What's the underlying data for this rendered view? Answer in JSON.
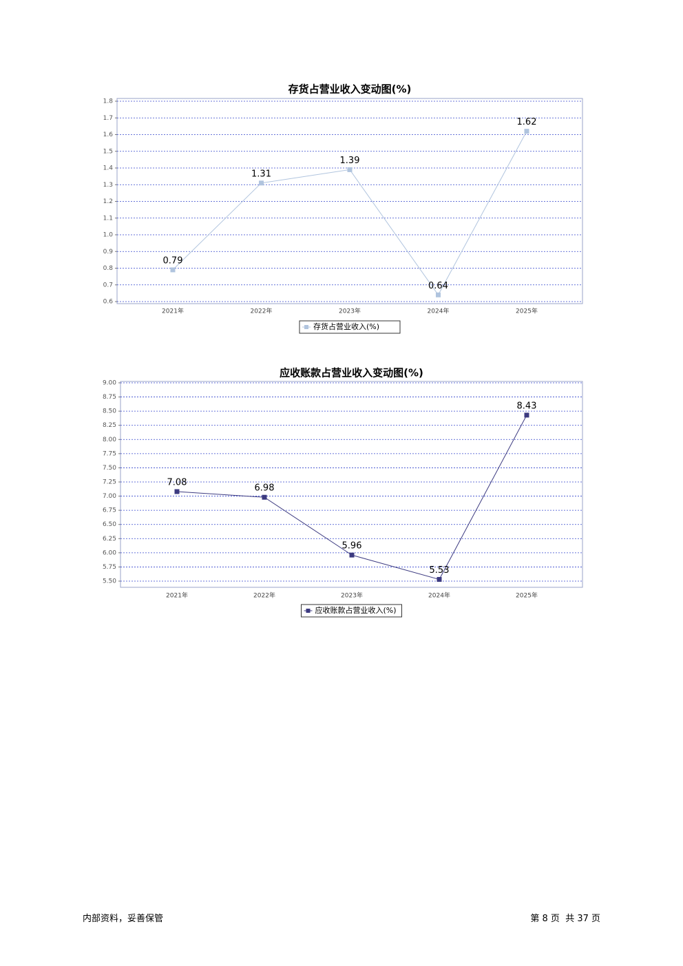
{
  "chart_data": [
    {
      "type": "line",
      "title": "存货占营业收入变动图(%)",
      "categories": [
        "2021年",
        "2022年",
        "2023年",
        "2024年",
        "2025年"
      ],
      "series": [
        {
          "name": "存货占营业收入(%)",
          "color": "#b0c4de",
          "values": [
            0.79,
            1.31,
            1.39,
            0.64,
            1.62
          ]
        }
      ],
      "ylim": [
        0.6,
        1.8
      ],
      "yticks": [
        0.6,
        0.7,
        0.8,
        0.9,
        {
          "value": 1,
          "label": "1.0"
        },
        1.1,
        1.2,
        1.3,
        1.4,
        1.5,
        1.6,
        1.7,
        1.8
      ],
      "grid": true,
      "legend": "bottom"
    },
    {
      "type": "line",
      "title": "应收账款占营业收入变动图(%)",
      "categories": [
        "2021年",
        "2022年",
        "2023年",
        "2024年",
        "2025年"
      ],
      "series": [
        {
          "name": "应收账款占营业收入(%)",
          "color": "#3c3a80",
          "values": [
            7.08,
            6.98,
            5.96,
            5.53,
            8.43
          ]
        }
      ],
      "ylim": [
        5.5,
        9
      ],
      "yticks": [
        {
          "value": 5.5,
          "label": "5.50"
        },
        5.75,
        {
          "value": 6,
          "label": "6.00"
        },
        6.25,
        {
          "value": 6.5,
          "label": "6.50"
        },
        6.75,
        {
          "value": 7,
          "label": "7.00"
        },
        7.25,
        {
          "value": 7.5,
          "label": "7.50"
        },
        7.75,
        {
          "value": 8,
          "label": "8.00"
        },
        8.25,
        {
          "value": 8.5,
          "label": "8.50"
        },
        8.75,
        {
          "value": 9,
          "label": "9.00"
        }
      ],
      "grid": true,
      "legend": "bottom"
    }
  ],
  "footer": {
    "left": "内部资料，妥善保管",
    "right": "第 8 页  共 37 页"
  }
}
